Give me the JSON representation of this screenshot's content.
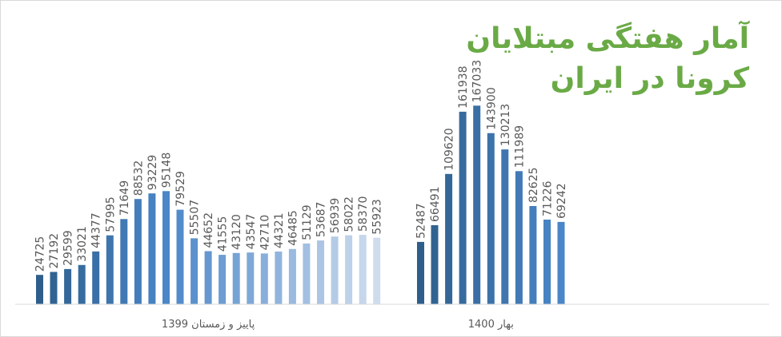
{
  "chart_data": {
    "type": "bar",
    "title_lines": [
      "آمار هفتگی مبتلایان",
      "کرونا در ایران"
    ],
    "groups": [
      {
        "label": "پاییز و زمستان 1399",
        "values": [
          24725,
          27192,
          29599,
          33021,
          44377,
          57995,
          71649,
          88532,
          93229,
          95148,
          79529,
          55507,
          44652,
          41555,
          43120,
          43547,
          42710,
          44321,
          46485,
          51129,
          53687,
          56939,
          58022,
          58370,
          55923
        ]
      },
      {
        "label": "بهار 1400",
        "values": [
          52487,
          66491,
          109620,
          161938,
          167033,
          143900,
          130213,
          111989,
          82625,
          71226,
          69242
        ]
      }
    ],
    "ylim": [
      0,
      180000
    ],
    "grid": false,
    "legend": "none",
    "colors": {
      "group1_start": "#2e5f8c",
      "group1_peak": "#4a86c8",
      "group1_end": "#cfdcee",
      "group2_start": "#2e5f8c",
      "group2_end": "#4a86c8",
      "label_text": "#595959",
      "axis": "#d9d9d9",
      "title": "#6aaa46"
    }
  }
}
